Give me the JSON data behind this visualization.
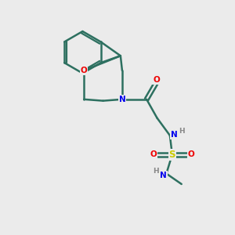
{
  "background_color": "#ebebeb",
  "atom_colors": {
    "C": "#2d7060",
    "N": "#0000ee",
    "O": "#ee0000",
    "S": "#cccc00",
    "H": "#888888"
  },
  "bond_color": "#2d7060",
  "figsize": [
    3.0,
    3.0
  ],
  "dpi": 100
}
